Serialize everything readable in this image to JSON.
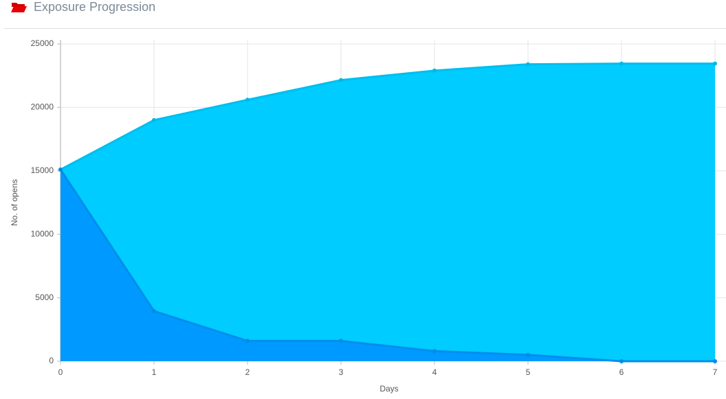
{
  "chart_data": {
    "type": "area",
    "title": "Exposure Progression",
    "x_label": "Days",
    "y_label": "No. of opens",
    "x": [
      0,
      1,
      2,
      3,
      4,
      5,
      6,
      7
    ],
    "series": [
      {
        "color": "#00ccff",
        "values": [
          15100,
          19000,
          20600,
          22150,
          22900,
          23400,
          23450,
          23450
        ]
      },
      {
        "color": "#0099ff",
        "values": [
          15100,
          3950,
          1600,
          1600,
          800,
          500,
          0,
          0
        ]
      }
    ],
    "xlim": [
      0,
      7
    ],
    "ylim": [
      0,
      25000
    ],
    "xticks": [
      0,
      1,
      2,
      3,
      4,
      5,
      6,
      7
    ],
    "yticks": [
      0,
      5000,
      10000,
      15000,
      20000,
      25000
    ],
    "grid": true
  }
}
